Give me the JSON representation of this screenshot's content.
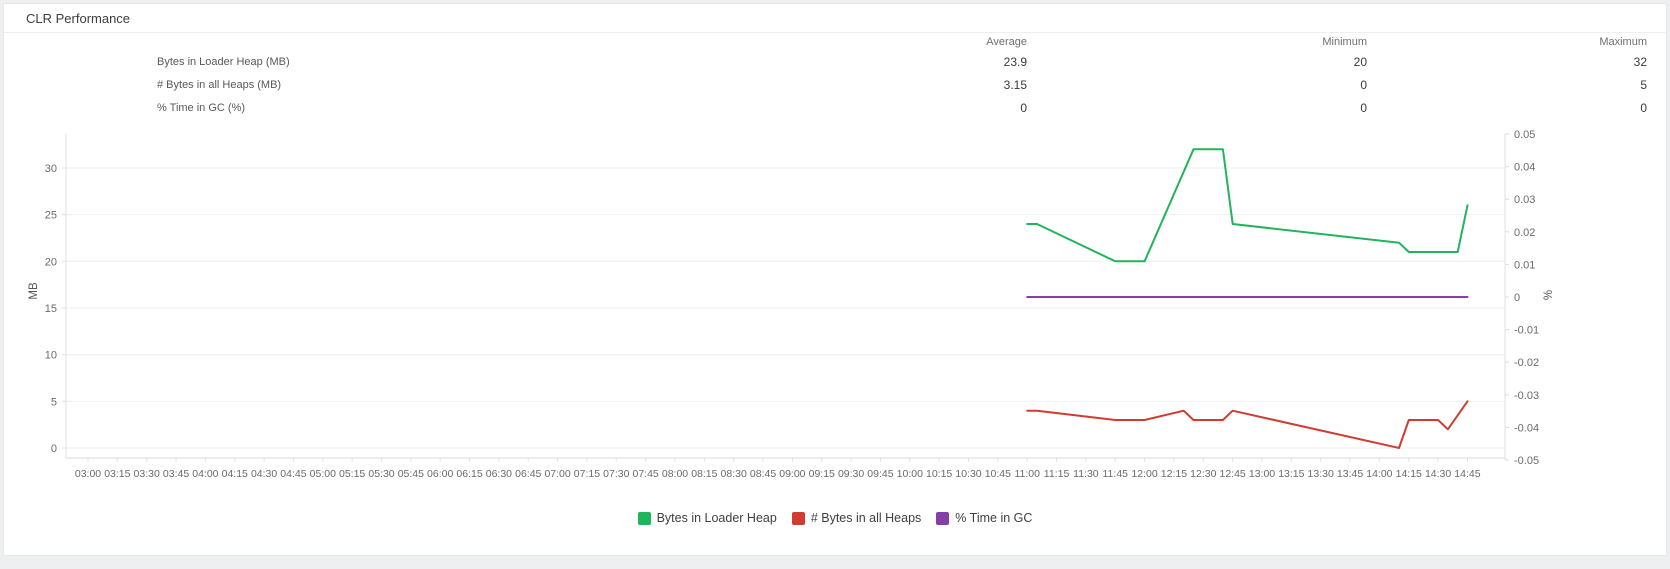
{
  "panel": {
    "title": "CLR Performance"
  },
  "stats": {
    "columns": [
      "Average",
      "Minimum",
      "Maximum"
    ],
    "rows": [
      {
        "label": "Bytes in Loader Heap (MB)",
        "average": "23.9",
        "minimum": "20",
        "maximum": "32"
      },
      {
        "label": "# Bytes in all Heaps (MB)",
        "average": "3.15",
        "minimum": "0",
        "maximum": "5"
      },
      {
        "label": "% Time in GC (%)",
        "average": "0",
        "minimum": "0",
        "maximum": "0"
      }
    ]
  },
  "chart_data": {
    "type": "line",
    "title": "CLR Performance",
    "grid": "horizontal",
    "legend_position": "bottom-center",
    "x_labels": [
      "03:00",
      "03:15",
      "03:30",
      "03:45",
      "04:00",
      "04:15",
      "04:30",
      "04:45",
      "05:00",
      "05:15",
      "05:30",
      "05:45",
      "06:00",
      "06:15",
      "06:30",
      "06:45",
      "07:00",
      "07:15",
      "07:30",
      "07:45",
      "08:00",
      "08:15",
      "08:30",
      "08:45",
      "09:00",
      "09:15",
      "09:30",
      "09:45",
      "10:00",
      "10:15",
      "10:30",
      "10:45",
      "11:00",
      "11:15",
      "11:30",
      "11:45",
      "12:00",
      "12:15",
      "12:30",
      "12:45",
      "13:00",
      "13:15",
      "13:30",
      "13:45",
      "14:00",
      "14:15",
      "14:30",
      "14:45"
    ],
    "y_left": {
      "label": "MB",
      "ticks": [
        30,
        25,
        20,
        15,
        10,
        5,
        0
      ],
      "ylim": [
        -1.1,
        33.6
      ]
    },
    "y_right": {
      "label": "%",
      "ticks": [
        "0.05",
        "0.04",
        "0.03",
        "0.02",
        "0.01",
        "0",
        "-0.01",
        "-0.02",
        "-0.03",
        "-0.04",
        "-0.05"
      ],
      "ylim": [
        -0.05,
        0.05
      ]
    },
    "series": [
      {
        "name": "Bytes in Loader Heap",
        "color": "#21b45c",
        "axis": "left",
        "points": [
          [
            "11:00",
            24
          ],
          [
            "11:05",
            24
          ],
          [
            "11:45",
            20
          ],
          [
            "12:00",
            20
          ],
          [
            "12:25",
            32
          ],
          [
            "12:40",
            32
          ],
          [
            "12:45",
            24
          ],
          [
            "14:10",
            22
          ],
          [
            "14:15",
            21
          ],
          [
            "14:40",
            21
          ],
          [
            "14:45",
            26
          ]
        ]
      },
      {
        "name": "# Bytes in all Heaps",
        "color": "#cf3c31",
        "axis": "left",
        "points": [
          [
            "11:00",
            4
          ],
          [
            "11:05",
            4
          ],
          [
            "11:45",
            3
          ],
          [
            "12:00",
            3
          ],
          [
            "12:20",
            4
          ],
          [
            "12:25",
            3
          ],
          [
            "12:40",
            3
          ],
          [
            "12:45",
            4
          ],
          [
            "14:10",
            0
          ],
          [
            "14:15",
            3
          ],
          [
            "14:30",
            3
          ],
          [
            "14:35",
            2
          ],
          [
            "14:45",
            5
          ]
        ]
      },
      {
        "name": "% Time in GC",
        "color": "#8540a8",
        "axis": "right",
        "points": [
          [
            "11:00",
            0
          ],
          [
            "14:45",
            0
          ]
        ]
      }
    ]
  }
}
